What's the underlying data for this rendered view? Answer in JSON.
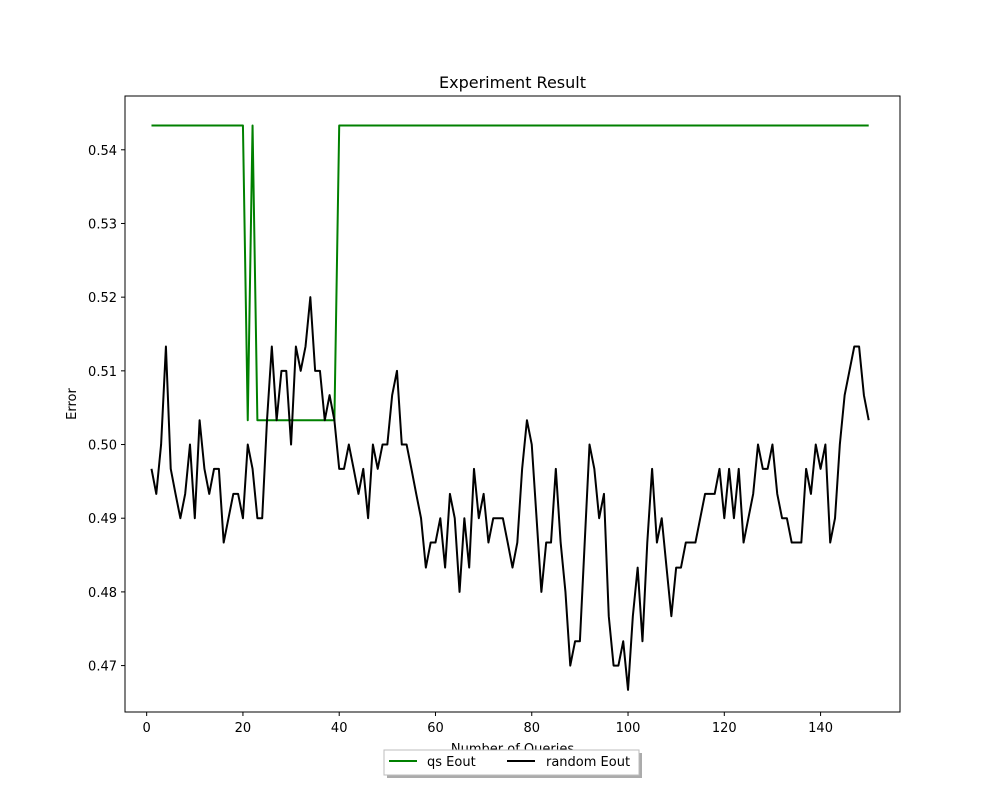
{
  "chart_data": {
    "type": "line",
    "title": "Experiment Result",
    "xlabel": "Number of Queries",
    "ylabel": "Error",
    "xlim": [
      -4.5,
      156.5
    ],
    "ylim": [
      0.4637,
      0.5473
    ],
    "xticks": [
      0,
      20,
      40,
      60,
      80,
      100,
      120,
      140
    ],
    "yticks": [
      0.47,
      0.48,
      0.49,
      0.5,
      0.51,
      0.52,
      0.53,
      0.54
    ],
    "ytick_labels": [
      "0.47",
      "0.48",
      "0.49",
      "0.50",
      "0.51",
      "0.52",
      "0.53",
      "0.54"
    ],
    "grid": false,
    "legend": {
      "position": "bottom-center",
      "columns": 2
    },
    "x_start": 1,
    "x_step": 1,
    "series": [
      {
        "name": "qs Eout",
        "color": "#008000",
        "values": [
          0.5433,
          0.5433,
          0.5433,
          0.5433,
          0.5433,
          0.5433,
          0.5433,
          0.5433,
          0.5433,
          0.5433,
          0.5433,
          0.5433,
          0.5433,
          0.5433,
          0.5433,
          0.5433,
          0.5433,
          0.5433,
          0.5433,
          0.5433,
          0.5033,
          0.5433,
          0.5033,
          0.5033,
          0.5033,
          0.5033,
          0.5033,
          0.5033,
          0.5033,
          0.5033,
          0.5033,
          0.5033,
          0.5033,
          0.5033,
          0.5033,
          0.5033,
          0.5033,
          0.5033,
          0.5033,
          0.5433,
          0.5433,
          0.5433,
          0.5433,
          0.5433,
          0.5433,
          0.5433,
          0.5433,
          0.5433,
          0.5433,
          0.5433,
          0.5433,
          0.5433,
          0.5433,
          0.5433,
          0.5433,
          0.5433,
          0.5433,
          0.5433,
          0.5433,
          0.5433,
          0.5433,
          0.5433,
          0.5433,
          0.5433,
          0.5433,
          0.5433,
          0.5433,
          0.5433,
          0.5433,
          0.5433,
          0.5433,
          0.5433,
          0.5433,
          0.5433,
          0.5433,
          0.5433,
          0.5433,
          0.5433,
          0.5433,
          0.5433,
          0.5433,
          0.5433,
          0.5433,
          0.5433,
          0.5433,
          0.5433,
          0.5433,
          0.5433,
          0.5433,
          0.5433,
          0.5433,
          0.5433,
          0.5433,
          0.5433,
          0.5433,
          0.5433,
          0.5433,
          0.5433,
          0.5433,
          0.5433,
          0.5433,
          0.5433,
          0.5433,
          0.5433,
          0.5433,
          0.5433,
          0.5433,
          0.5433,
          0.5433,
          0.5433,
          0.5433,
          0.5433,
          0.5433,
          0.5433,
          0.5433,
          0.5433,
          0.5433,
          0.5433,
          0.5433,
          0.5433,
          0.5433,
          0.5433,
          0.5433,
          0.5433,
          0.5433,
          0.5433,
          0.5433,
          0.5433,
          0.5433,
          0.5433,
          0.5433,
          0.5433,
          0.5433,
          0.5433,
          0.5433,
          0.5433,
          0.5433,
          0.5433,
          0.5433,
          0.5433,
          0.5433,
          0.5433,
          0.5433,
          0.5433,
          0.5433,
          0.5433,
          0.5433,
          0.5433,
          0.5433,
          0.5433
        ]
      },
      {
        "name": "random Eout",
        "color": "#000000",
        "values": [
          0.4967,
          0.4933,
          0.5,
          0.5133,
          0.4967,
          0.4933,
          0.49,
          0.4933,
          0.5,
          0.49,
          0.5033,
          0.4967,
          0.4933,
          0.4967,
          0.4967,
          0.4867,
          0.49,
          0.4933,
          0.4933,
          0.49,
          0.5,
          0.4967,
          0.49,
          0.49,
          0.5033,
          0.5133,
          0.5033,
          0.51,
          0.51,
          0.5,
          0.5133,
          0.51,
          0.5133,
          0.52,
          0.51,
          0.51,
          0.5033,
          0.5067,
          0.5033,
          0.4967,
          0.4967,
          0.5,
          0.4967,
          0.4933,
          0.4967,
          0.49,
          0.5,
          0.4967,
          0.5,
          0.5,
          0.5067,
          0.51,
          0.5,
          0.5,
          0.4967,
          0.4933,
          0.49,
          0.4833,
          0.4867,
          0.4867,
          0.49,
          0.4833,
          0.4933,
          0.49,
          0.48,
          0.49,
          0.4833,
          0.4967,
          0.49,
          0.4933,
          0.4867,
          0.49,
          0.49,
          0.49,
          0.4867,
          0.4833,
          0.4867,
          0.4967,
          0.5033,
          0.5,
          0.49,
          0.48,
          0.4867,
          0.4867,
          0.4967,
          0.4867,
          0.48,
          0.47,
          0.4733,
          0.4733,
          0.4867,
          0.5,
          0.4967,
          0.49,
          0.4933,
          0.4767,
          0.47,
          0.47,
          0.4733,
          0.4667,
          0.4767,
          0.4833,
          0.4733,
          0.4867,
          0.4967,
          0.4867,
          0.49,
          0.4833,
          0.4767,
          0.4833,
          0.4833,
          0.4867,
          0.4867,
          0.4867,
          0.49,
          0.4933,
          0.4933,
          0.4933,
          0.4967,
          0.49,
          0.4967,
          0.49,
          0.4967,
          0.4867,
          0.49,
          0.4933,
          0.5,
          0.4967,
          0.4967,
          0.5,
          0.4933,
          0.49,
          0.49,
          0.4867,
          0.4867,
          0.4867,
          0.4967,
          0.4933,
          0.5,
          0.4967,
          0.5,
          0.4867,
          0.49,
          0.5,
          0.5067,
          0.51,
          0.5133,
          0.5133,
          0.5067,
          0.5033
        ]
      }
    ]
  }
}
